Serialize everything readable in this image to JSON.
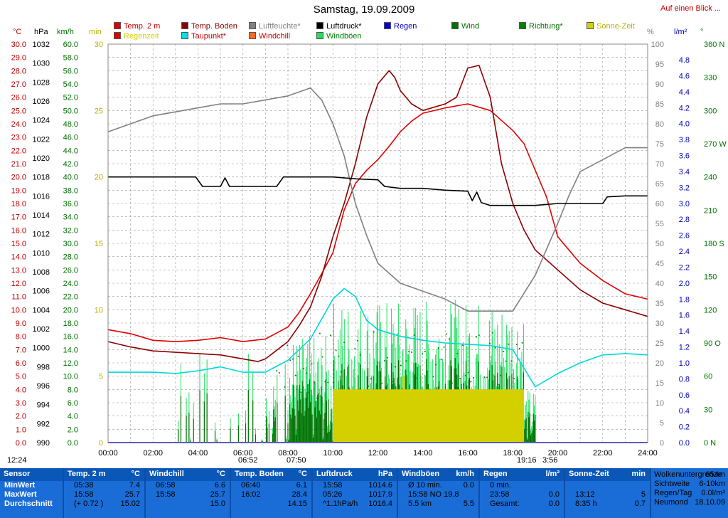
{
  "title": "Samstag, 19.09.2009",
  "link": "Auf einen Blick ...",
  "legend": [
    {
      "label": "Temp. 2 m",
      "color": "#e00000",
      "text_color": "#c00000"
    },
    {
      "label": "Regenzeit",
      "color": "#e00000",
      "text_color": "#d4d000"
    },
    {
      "label": "Temp. Boden",
      "color": "#8b0000",
      "text_color": "#8b0000"
    },
    {
      "label": "Taupunkt*",
      "color": "#00e0e0",
      "text_color": "#c00000"
    },
    {
      "label": "Luftfeuchte*",
      "color": "#808080",
      "text_color": "#808080"
    },
    {
      "label": "Windchill",
      "color": "#ff6a20",
      "text_color": "#c00000"
    },
    {
      "label": "Luftdruck*",
      "color": "#000000",
      "text_color": "#000000"
    },
    {
      "label": "Windböen",
      "color": "#20e060",
      "text_color": "#008000"
    },
    {
      "label": "Regen",
      "color": "#0000e0",
      "text_color": "#0000c0"
    },
    {
      "label": "Wind",
      "color": "#007000",
      "text_color": "#007000"
    },
    {
      "label": "Richtung*",
      "color": "#008000",
      "text_color": "#007000"
    },
    {
      "label": "Sonne-Zeit",
      "color": "#d4d000",
      "text_color": "#b8b000"
    }
  ],
  "units": {
    "temp": "°C",
    "pressure": "hPa",
    "wind": "km/h",
    "minutes": "min",
    "humidity": "%",
    "rain": "l/m²",
    "direction": "°"
  },
  "axes": {
    "temp_ticks": [
      "30.0",
      "29.0",
      "28.0",
      "27.0",
      "26.0",
      "25.0",
      "24.0",
      "23.0",
      "22.0",
      "21.0",
      "20.0",
      "19.0",
      "18.0",
      "17.0",
      "16.0",
      "15.0",
      "14.0",
      "13.0",
      "12.0",
      "11.0",
      "10.0",
      "9.0",
      "8.0",
      "7.0",
      "6.0",
      "5.0",
      "4.0",
      "3.0",
      "2.0",
      "1.0",
      "0.0"
    ],
    "pressure_ticks": [
      "1032",
      "1030",
      "1028",
      "1026",
      "1024",
      "1022",
      "1020",
      "1018",
      "1016",
      "1014",
      "1012",
      "1010",
      "1008",
      "1006",
      "1004",
      "1002",
      "1000",
      "998",
      "996",
      "994",
      "992",
      "990"
    ],
    "wind_ticks": [
      "60.0",
      "58.0",
      "56.0",
      "54.0",
      "52.0",
      "50.0",
      "48.0",
      "46.0",
      "44.0",
      "42.0",
      "40.0",
      "38.0",
      "36.0",
      "34.0",
      "32.0",
      "30.0",
      "28.0",
      "26.0",
      "24.0",
      "22.0",
      "20.0",
      "18.0",
      "16.0",
      "14.0",
      "12.0",
      "10.0",
      "8.0",
      "6.0",
      "4.0",
      "2.0",
      "0.0"
    ],
    "min_ticks": [
      "30",
      "25",
      "20",
      "15",
      "10",
      "5",
      "0"
    ],
    "humidity_ticks": [
      "100",
      "95",
      "90",
      "85",
      "80",
      "75",
      "70",
      "65",
      "60",
      "55",
      "50",
      "45",
      "40",
      "35",
      "30",
      "25",
      "20",
      "15",
      "10",
      "5",
      "0"
    ],
    "rain_ticks": [
      "4.8",
      "4.6",
      "4.4",
      "4.2",
      "4.0",
      "3.8",
      "3.6",
      "3.4",
      "3.2",
      "3.0",
      "2.8",
      "2.6",
      "2.4",
      "2.2",
      "2.0",
      "1.8",
      "1.6",
      "1.4",
      "1.2",
      "1.0",
      "0.8",
      "0.6",
      "0.4",
      "0.2",
      "0.0"
    ],
    "dir_ticks": [
      "360 N",
      "330",
      "300",
      "270 W",
      "240",
      "210",
      "180 S",
      "150",
      "120",
      "90 O",
      "60",
      "30",
      "0   N"
    ],
    "time_ticks": [
      "00:00",
      "02:00",
      "04:00",
      "06:00",
      "08:00",
      "10:00",
      "12:00",
      "14:00",
      "16:00",
      "18:00",
      "20:00",
      "22:00",
      "24:00"
    ]
  },
  "sun_marks": {
    "sunrise": "06:52",
    "sunset": "19:16",
    "left_time": "12:24",
    "mark2": "07:50",
    "mark3": "3:56"
  },
  "chart_data": {
    "type": "line",
    "x_unit": "hour",
    "xlim": [
      0,
      24
    ],
    "series": [
      {
        "name": "Temp. 2 m",
        "axis": "°C",
        "color": "#e00000",
        "x": [
          0,
          1,
          2,
          3,
          4,
          5,
          6,
          7,
          8,
          8.5,
          9,
          9.5,
          10,
          10.5,
          11,
          11.5,
          12,
          12.5,
          13,
          13.5,
          14,
          15,
          16,
          17,
          18,
          18.5,
          19,
          19.5,
          20,
          21,
          22,
          23,
          24
        ],
        "y": [
          8.5,
          8.2,
          7.7,
          7.6,
          7.7,
          7.9,
          7.6,
          7.8,
          8.7,
          9.8,
          11.2,
          12.7,
          14.3,
          17.5,
          19.5,
          20.5,
          21.3,
          22.3,
          23.4,
          24.2,
          24.8,
          25.2,
          25.5,
          25.0,
          23.5,
          22.5,
          20.5,
          18.5,
          15.5,
          13.5,
          12.2,
          11.2,
          10.8
        ]
      },
      {
        "name": "Temp. Boden",
        "axis": "°C",
        "color": "#8b0000",
        "x": [
          0,
          1,
          2,
          3,
          4,
          5,
          6,
          6.66,
          7,
          8,
          8.5,
          9,
          9.5,
          10,
          10.5,
          11,
          11.5,
          12,
          12.5,
          12.75,
          13,
          13.5,
          14,
          15,
          15.5,
          16,
          16.5,
          17,
          17.5,
          18,
          18.5,
          19,
          20,
          21,
          22,
          23,
          24
        ],
        "y": [
          7.6,
          7.2,
          6.9,
          6.8,
          6.7,
          6.6,
          6.3,
          6.1,
          6.3,
          7.6,
          8.8,
          10.2,
          12.5,
          15.5,
          18.0,
          21.0,
          24.5,
          27.0,
          28.0,
          27.5,
          26.5,
          25.5,
          25.0,
          25.5,
          26.0,
          28.2,
          28.4,
          26.0,
          21.0,
          18.0,
          16.0,
          14.5,
          13.0,
          11.5,
          10.5,
          10.0,
          9.5
        ]
      },
      {
        "name": "Taupunkt*",
        "axis": "°C",
        "color": "#00d8d8",
        "x": [
          0,
          1,
          2,
          3,
          4,
          5,
          6,
          7,
          8,
          9,
          10,
          10.5,
          11,
          11.5,
          12,
          13,
          14,
          15,
          16,
          17,
          18,
          19,
          20,
          21,
          22,
          23,
          24
        ],
        "y": [
          5.3,
          5.3,
          5.3,
          5.2,
          5.4,
          5.7,
          5.3,
          5.3,
          6.2,
          7.8,
          10.8,
          11.6,
          11.0,
          9.2,
          8.5,
          8.0,
          7.7,
          7.5,
          7.4,
          7.3,
          7.0,
          4.2,
          5.2,
          6.0,
          6.6,
          6.7,
          6.6
        ]
      },
      {
        "name": "Luftfeuchte*",
        "axis": "%",
        "color": "#808080",
        "x": [
          0,
          1,
          2,
          3,
          4,
          5,
          6,
          7,
          8,
          9,
          9.5,
          10,
          10.5,
          11,
          11.5,
          12,
          13,
          14,
          15,
          16,
          17,
          18,
          19,
          20,
          20.5,
          21,
          22,
          23,
          24
        ],
        "y": [
          78,
          80,
          82,
          83,
          84,
          85,
          85,
          86,
          87,
          89,
          86,
          80,
          72,
          60,
          52,
          45,
          40,
          38,
          36,
          33,
          33,
          33,
          42,
          55,
          62,
          68,
          71,
          74,
          74
        ]
      },
      {
        "name": "Luftdruck*",
        "axis": "hPa",
        "color": "#000000",
        "x": [
          0,
          1,
          2,
          3,
          3.9,
          4.2,
          5,
          5.2,
          5.4,
          6,
          7,
          7.5,
          7.8,
          8,
          9,
          10,
          11,
          12,
          12.3,
          13,
          14,
          15,
          16,
          16.2,
          16.4,
          16.6,
          17,
          18,
          19,
          20,
          21,
          22,
          22.2,
          23,
          24
        ],
        "y": [
          1018,
          1018,
          1018,
          1018,
          1018,
          1017,
          1017,
          1017.9,
          1017,
          1017,
          1017,
          1017,
          1018,
          1018,
          1018,
          1018,
          1017.8,
          1017.7,
          1017,
          1016.8,
          1016.8,
          1016.6,
          1016.5,
          1015.5,
          1016.4,
          1015.3,
          1015,
          1015,
          1015,
          1015.2,
          1015.2,
          1015.2,
          1015.9,
          1016,
          1016
        ]
      },
      {
        "name": "Sonne-Zeit",
        "axis": "min",
        "color": "#d4d000",
        "x": [
          10,
          10,
          13.1,
          13.1,
          13.2,
          13.2,
          18.5,
          18.5
        ],
        "y": [
          0,
          4,
          4,
          5,
          5,
          4,
          4,
          0
        ]
      }
    ],
    "ylim_temp": [
      0,
      30
    ],
    "ylim_pressure": [
      990,
      1032
    ],
    "ylim_humidity": [
      0,
      100
    ],
    "grid": true,
    "legend_position": "top"
  },
  "stats": {
    "sensor": {
      "title": "Sensor",
      "rows": [
        "MinWert",
        "MaxWert",
        "Durchschnitt"
      ]
    },
    "panels": [
      {
        "title": "Temp. 2 m",
        "unit": "°C",
        "rows": [
          [
            "05:38",
            "7.4"
          ],
          [
            "15:58",
            "25.7"
          ],
          [
            "(+ 0.72 )",
            "15.02"
          ]
        ]
      },
      {
        "title": "Windchill",
        "unit": "°C",
        "rows": [
          [
            "06:58",
            "6.6"
          ],
          [
            "15:58",
            "25.7"
          ],
          [
            "",
            "15.0"
          ]
        ]
      },
      {
        "title": "Temp. Boden",
        "unit": "°C",
        "rows": [
          [
            "06:40",
            "6.1"
          ],
          [
            "16:02",
            "28.4"
          ],
          [
            "",
            "14.15"
          ]
        ]
      },
      {
        "title": "Luftdruck",
        "unit": "hPa",
        "rows": [
          [
            "15:58",
            "1014.6"
          ],
          [
            "05:26",
            "1017.9"
          ],
          [
            "^1.1hPa/h",
            "1016.4"
          ]
        ]
      },
      {
        "title": "Windböen",
        "unit": "km/h",
        "rows": [
          [
            "Ø 10 min.",
            "0.0"
          ],
          [
            "15:58   NO 19.8",
            ""
          ],
          [
            "5.5 km",
            "5.5"
          ]
        ]
      },
      {
        "title": "Regen",
        "unit": "l/m²",
        "rows": [
          [
            "0 min.",
            ""
          ],
          [
            "23:58",
            "0.0"
          ],
          [
            "Gesamt:",
            "0.0"
          ]
        ]
      },
      {
        "title": "Sonne-Zeit",
        "unit": "min",
        "rows": [
          [
            "",
            ""
          ],
          [
            "13:12",
            "5"
          ],
          [
            "8:35 h",
            "0.7"
          ]
        ]
      }
    ],
    "extra": [
      [
        "Wolkenuntergrenze",
        "654m"
      ],
      [
        "Sichtweite",
        "6-10km"
      ],
      [
        "Regen/Tag",
        "0.0l/m²"
      ],
      [
        "Neumond",
        "18.10.09"
      ]
    ]
  }
}
